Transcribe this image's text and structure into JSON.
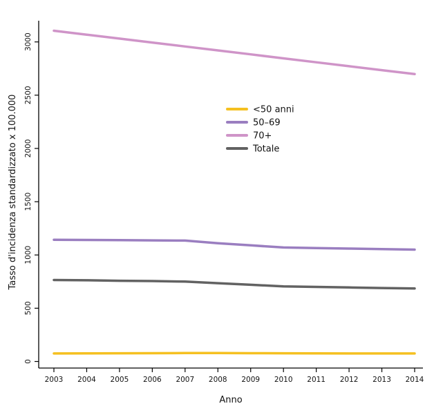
{
  "chart_data": {
    "type": "line",
    "title": "",
    "xlabel": "Anno",
    "ylabel": "Tasso d'incidenza standardizzato x 100.000",
    "x": [
      2003,
      2004,
      2005,
      2006,
      2007,
      2008,
      2009,
      2010,
      2011,
      2012,
      2013,
      2014
    ],
    "x_tick_labels": [
      "2003",
      "2004",
      "2005",
      "2006",
      "2007",
      "2008",
      "2009",
      "2010",
      "2011",
      "2012",
      "2013",
      "2014"
    ],
    "y_ticks": [
      0,
      500,
      1000,
      1500,
      2000,
      2500,
      3000
    ],
    "y_tick_labels": [
      "0",
      "500",
      "1000",
      "1500",
      "2000",
      "2500",
      "3000"
    ],
    "xlim": [
      2003,
      2014
    ],
    "ylim": [
      -55,
      3180
    ],
    "grid": false,
    "legend_position": "upper-center",
    "series": [
      {
        "name": "<50 anni",
        "color": "#f5c020",
        "values": [
          75,
          76,
          77,
          78,
          79,
          79,
          78,
          77,
          76,
          75,
          75,
          75
        ]
      },
      {
        "name": "50–69",
        "color": "#9a7ec0",
        "values": [
          1143,
          1141,
          1139,
          1137,
          1135,
          1110,
          1090,
          1070,
          1065,
          1060,
          1055,
          1050
        ]
      },
      {
        "name": "70+",
        "color": "#cf94c8",
        "values": [
          3105,
          3068,
          3031,
          2994,
          2957,
          2920,
          2883,
          2846,
          2809,
          2772,
          2735,
          2698
        ]
      },
      {
        "name": "Totale",
        "color": "#626262",
        "values": [
          765,
          762,
          758,
          755,
          750,
          735,
          720,
          705,
          700,
          695,
          690,
          686
        ]
      }
    ]
  }
}
